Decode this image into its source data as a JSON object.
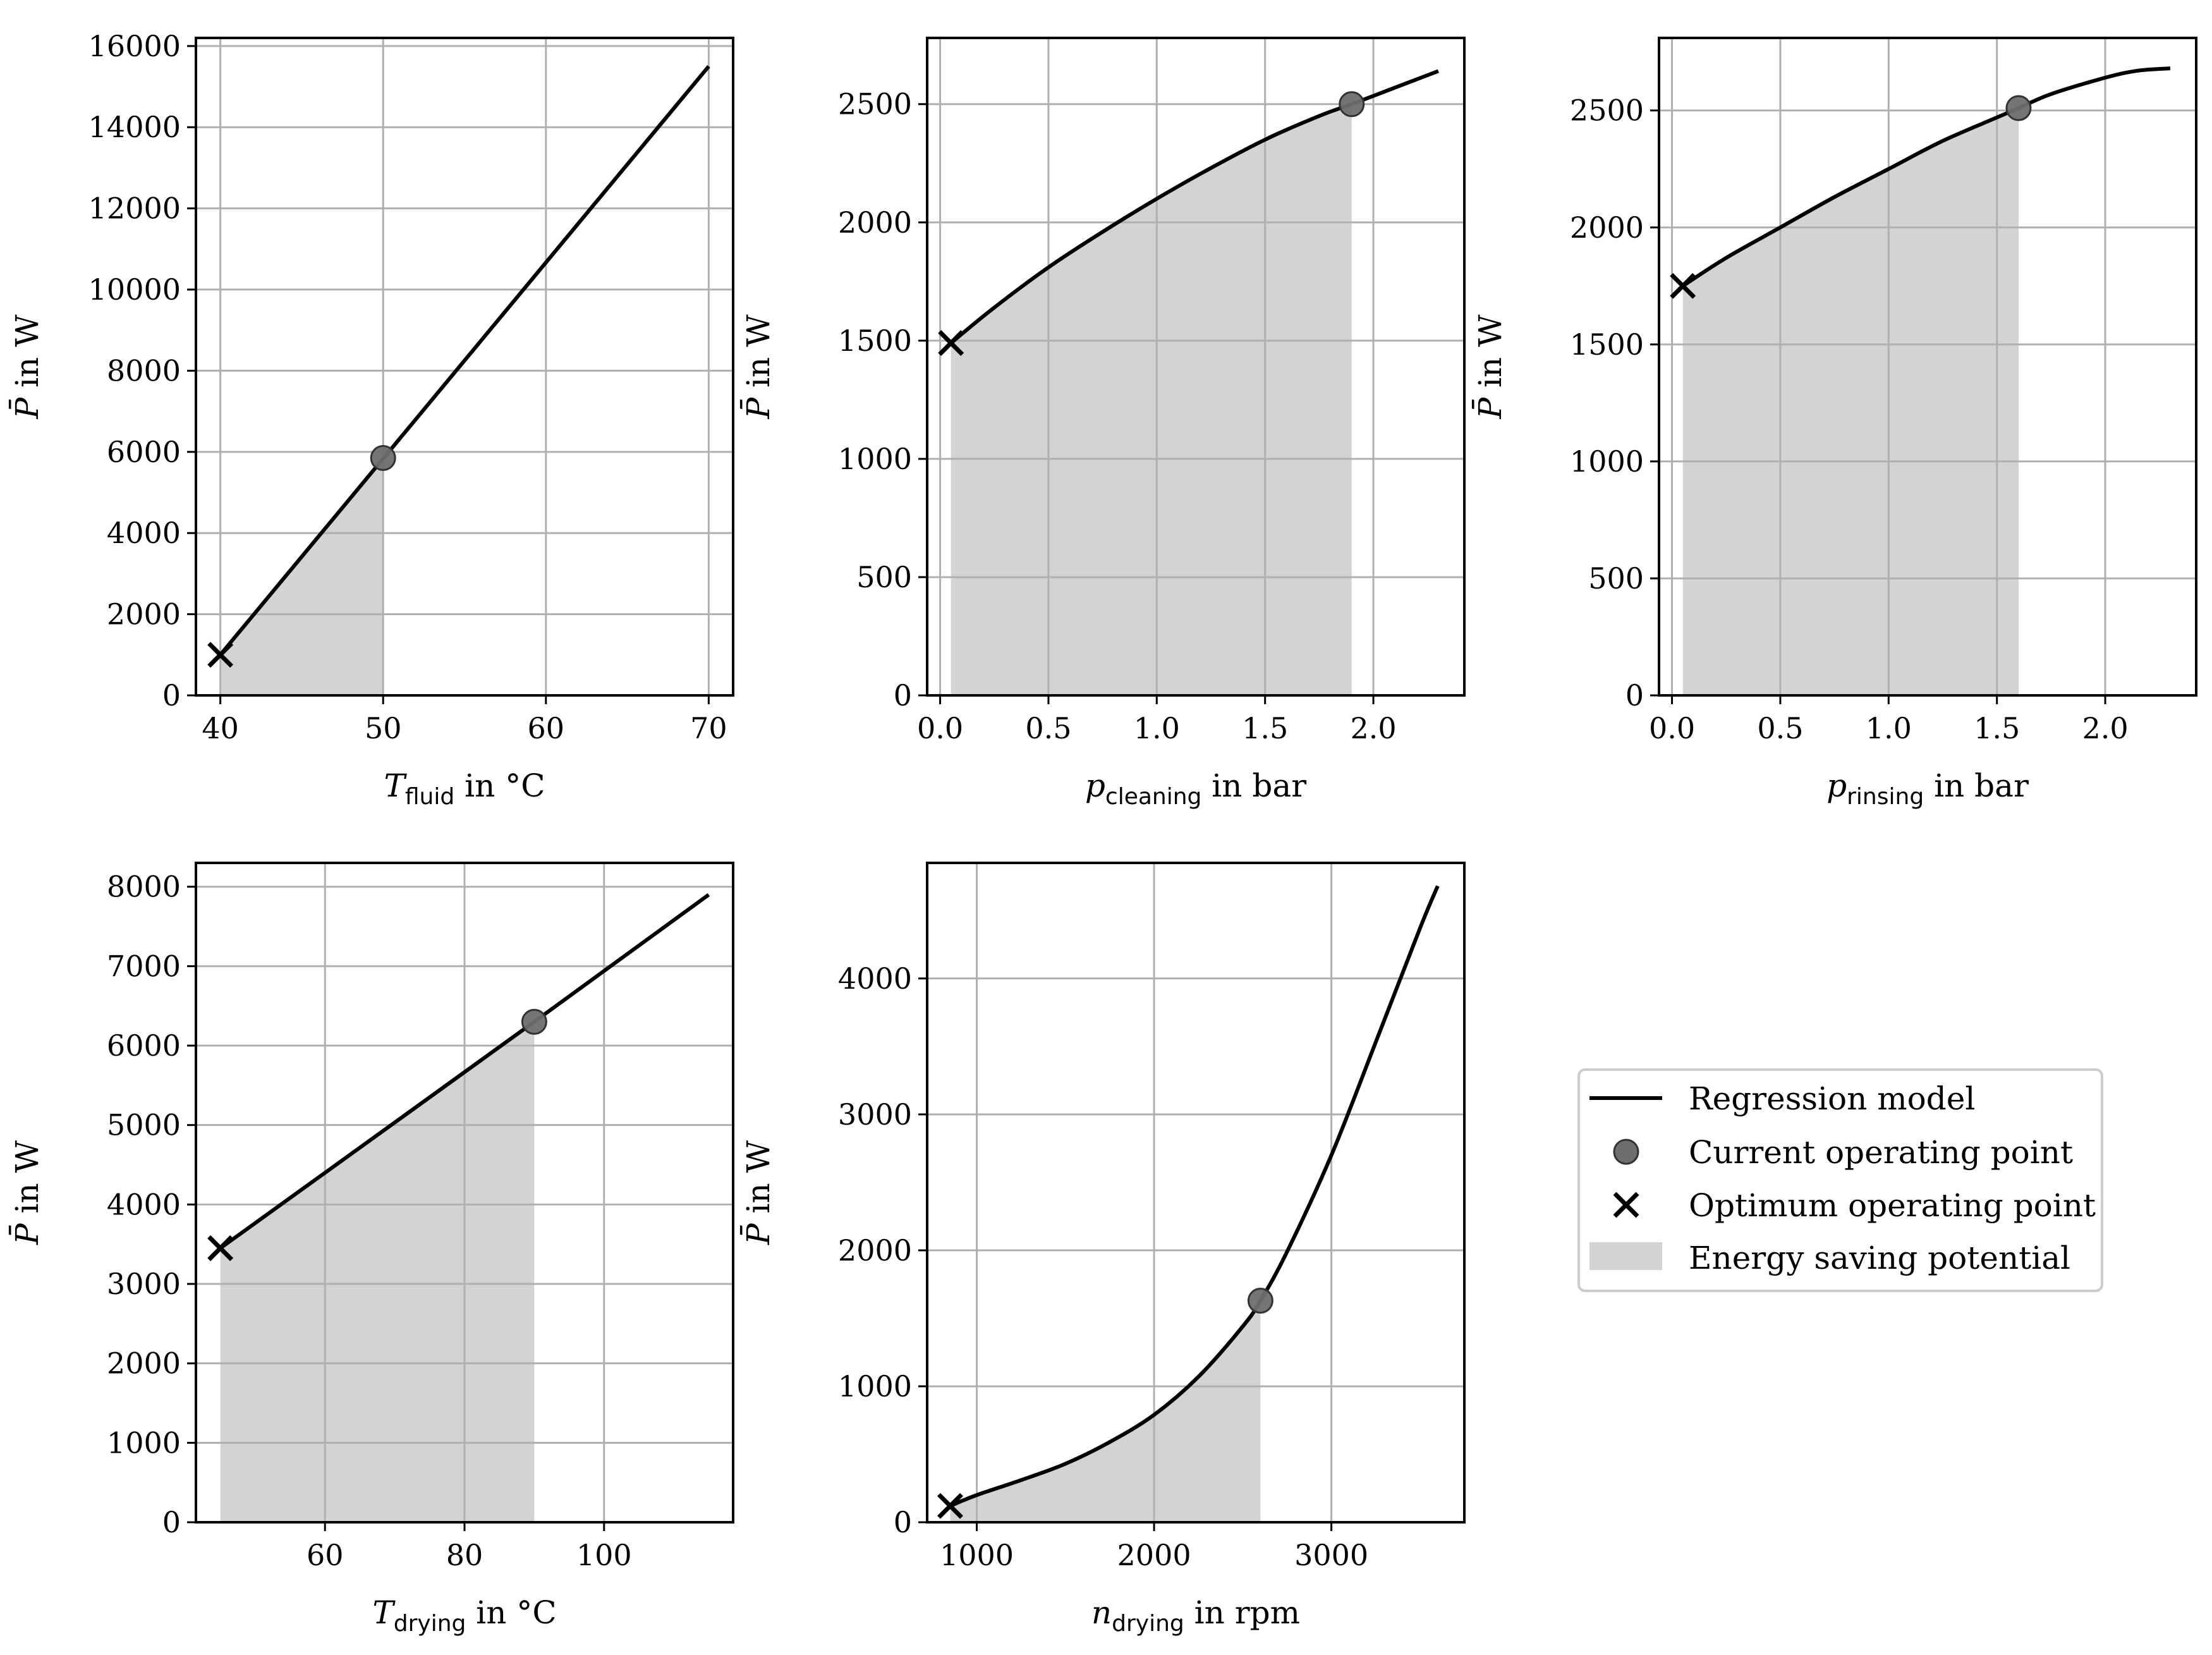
{
  "legend": {
    "entries": [
      {
        "label": "Regression model",
        "marker": "line",
        "color": "#000000"
      },
      {
        "label": "Current operating point",
        "marker": "circle",
        "color": "#6e6e6e"
      },
      {
        "label": "Optimum operating point",
        "marker": "x",
        "color": "#000000"
      },
      {
        "label": "Energy saving potential",
        "marker": "patch",
        "color": "#d3d3d3"
      }
    ]
  },
  "colors": {
    "line": "#000000",
    "fill": "#d3d3d3",
    "grid": "#b0b0b0",
    "current_point": "#6e6e6e"
  },
  "chart_data": [
    {
      "type": "line",
      "ylabel": "P̄ in W",
      "xlabel": {
        "var": "T",
        "sub": "fluid",
        "unit": " in °C"
      },
      "xlim": [
        38.5,
        71.5
      ],
      "ylim": [
        0,
        16200
      ],
      "xticks": [
        40,
        50,
        60,
        70
      ],
      "yticks": [
        0,
        2000,
        4000,
        6000,
        8000,
        10000,
        12000,
        14000,
        16000
      ],
      "series": [
        {
          "x": [
            40,
            70
          ],
          "y": [
            1000,
            15500
          ]
        }
      ],
      "current": {
        "x": 50,
        "y": 5850
      },
      "optimum": {
        "x": 40,
        "y": 1000
      },
      "fill": [
        40,
        50
      ]
    },
    {
      "type": "line",
      "ylabel": "P̄ in W",
      "xlabel": {
        "var": "p",
        "sub": "cleaning",
        "unit": " in bar"
      },
      "xlim": [
        -0.06,
        2.42
      ],
      "ylim": [
        0,
        2780
      ],
      "xticks": [
        0.0,
        0.5,
        1.0,
        1.5,
        2.0
      ],
      "xtick_labels": [
        "0.0",
        "0.5",
        "1.0",
        "1.5",
        "2.0"
      ],
      "yticks": [
        0,
        500,
        1000,
        1500,
        2000,
        2500
      ],
      "series": [
        {
          "x": [
            0.05,
            0.25,
            0.5,
            0.75,
            1.0,
            1.25,
            1.5,
            1.75,
            1.9,
            2.1,
            2.3
          ],
          "y": [
            1490,
            1640,
            1810,
            1960,
            2100,
            2230,
            2350,
            2450,
            2500,
            2570,
            2640
          ]
        }
      ],
      "current": {
        "x": 1.9,
        "y": 2500
      },
      "optimum": {
        "x": 0.05,
        "y": 1490
      },
      "fill": [
        0.05,
        1.9
      ]
    },
    {
      "type": "line",
      "ylabel": "P̄ in W",
      "xlabel": {
        "var": "p",
        "sub": "rinsing",
        "unit": " in bar"
      },
      "xlim": [
        -0.06,
        2.42
      ],
      "ylim": [
        0,
        2810
      ],
      "xticks": [
        0.0,
        0.5,
        1.0,
        1.5,
        2.0
      ],
      "xtick_labels": [
        "0.0",
        "0.5",
        "1.0",
        "1.5",
        "2.0"
      ],
      "yticks": [
        0,
        500,
        1000,
        1500,
        2000,
        2500
      ],
      "series": [
        {
          "x": [
            0.05,
            0.25,
            0.5,
            0.75,
            1.0,
            1.25,
            1.5,
            1.6,
            1.75,
            2.0,
            2.15,
            2.3
          ],
          "y": [
            1750,
            1870,
            2000,
            2130,
            2250,
            2370,
            2470,
            2510,
            2570,
            2640,
            2670,
            2680
          ]
        }
      ],
      "current": {
        "x": 1.6,
        "y": 2510
      },
      "optimum": {
        "x": 0.05,
        "y": 1750
      },
      "fill": [
        0.05,
        1.6
      ]
    },
    {
      "type": "line",
      "ylabel": "P̄ in W",
      "xlabel": {
        "var": "T",
        "sub": "drying",
        "unit": " in °C"
      },
      "xlim": [
        41.5,
        118.5
      ],
      "ylim": [
        0,
        8300
      ],
      "xticks": [
        60,
        80,
        100
      ],
      "yticks": [
        0,
        1000,
        2000,
        3000,
        4000,
        5000,
        6000,
        7000,
        8000
      ],
      "series": [
        {
          "x": [
            45,
            90,
            115
          ],
          "y": [
            3450,
            6300,
            7900
          ]
        }
      ],
      "current": {
        "x": 90,
        "y": 6300
      },
      "optimum": {
        "x": 45,
        "y": 3450
      },
      "fill": [
        45,
        90
      ]
    },
    {
      "type": "line",
      "ylabel": "P̄ in W",
      "xlabel": {
        "var": "n",
        "sub": "drying",
        "unit": " in rpm"
      },
      "xlim": [
        720,
        3750
      ],
      "ylim": [
        0,
        4850
      ],
      "xticks": [
        1000,
        2000,
        3000
      ],
      "yticks": [
        0,
        1000,
        2000,
        3000,
        4000
      ],
      "series": [
        {
          "x": [
            850,
            1000,
            1250,
            1500,
            1750,
            2000,
            2250,
            2500,
            2600,
            2750,
            3000,
            3250,
            3500,
            3600
          ],
          "y": [
            120,
            200,
            310,
            430,
            590,
            790,
            1070,
            1440,
            1630,
            1990,
            2700,
            3530,
            4370,
            4680
          ]
        }
      ],
      "current": {
        "x": 2600,
        "y": 1630
      },
      "optimum": {
        "x": 850,
        "y": 120
      },
      "fill": [
        850,
        2600
      ]
    }
  ]
}
